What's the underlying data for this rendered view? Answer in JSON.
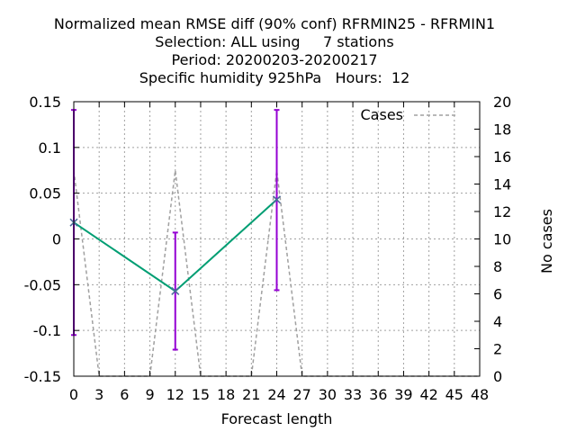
{
  "title_lines": [
    "Normalized mean RMSE diff (90% conf) RFRMIN25 - RFRMIN1",
    "Selection: ALL using     7 stations",
    "Period: 20200203-20200217",
    "Specific humidity 925hPa   Hours:  12"
  ],
  "chart_data": {
    "type": "line",
    "xlabel": "Forecast length",
    "ylabel": "",
    "y2label": "No cases",
    "xlim": [
      0,
      48
    ],
    "ylim": [
      -0.15,
      0.15
    ],
    "y2lim": [
      0,
      20
    ],
    "x_ticks": [
      "0",
      "3",
      "6",
      "9",
      "12",
      "15",
      "18",
      "21",
      "24",
      "27",
      "30",
      "33",
      "36",
      "39",
      "42",
      "45",
      "48"
    ],
    "y_ticks": [
      "0.15",
      "0.1",
      "0.05",
      "0",
      "-0.05",
      "-0.1",
      "-0.15"
    ],
    "y2_ticks": [
      "20",
      "18",
      "16",
      "14",
      "12",
      "10",
      "8",
      "6",
      "4",
      "2",
      "0"
    ],
    "grid": true,
    "legend": {
      "position": "top-right",
      "entries": [
        "Cases"
      ]
    },
    "series": [
      {
        "role": "rmse-diff",
        "color": "#009e73",
        "x": [
          0,
          12,
          24
        ],
        "y": [
          0.018,
          -0.057,
          0.043
        ],
        "error_low": [
          -0.105,
          -0.121,
          -0.056
        ],
        "error_high": [
          0.141,
          0.007,
          0.141
        ],
        "error_color": "#9400d3"
      },
      {
        "name": "Cases",
        "color": "#a0a0a0",
        "axis": "y2",
        "x": [
          0,
          3,
          9,
          12,
          15,
          21,
          24,
          27,
          48
        ],
        "y": [
          15,
          0,
          0,
          15,
          0,
          0,
          15,
          0,
          0
        ]
      }
    ]
  }
}
